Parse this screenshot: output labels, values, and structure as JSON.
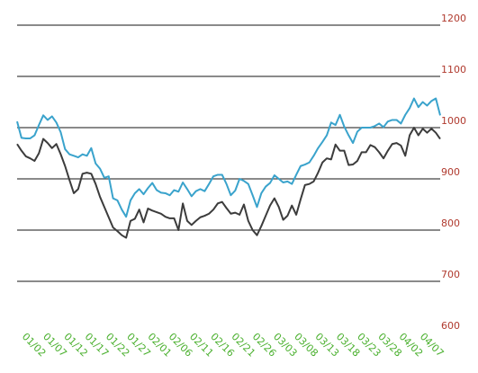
{
  "chart_data": {
    "type": "line",
    "ylim": [
      600,
      1200
    ],
    "yticks": [
      600,
      700,
      800,
      900,
      1000,
      1100,
      1200
    ],
    "grid": true,
    "legend": "none",
    "colors": {
      "ytick": "#b03a2e",
      "xtick": "#4ab02e",
      "grid": "#444444"
    },
    "xticks": [
      "01/02",
      "01/07",
      "01/12",
      "01/17",
      "01/22",
      "01/27",
      "02/01",
      "02/06",
      "02/11",
      "02/16",
      "02/21",
      "02/26",
      "03/03",
      "03/08",
      "03/13",
      "03/18",
      "03/23",
      "03/28",
      "04/02",
      "04/07"
    ],
    "series": [
      {
        "color": "#3aa3cc",
        "values": [
          1012,
          980,
          979,
          979,
          985,
          1005,
          1024,
          1015,
          1022,
          1010,
          991,
          958,
          948,
          945,
          942,
          948,
          945,
          960,
          930,
          920,
          902,
          905,
          862,
          858,
          840,
          826,
          858,
          872,
          880,
          870,
          882,
          892,
          878,
          873,
          872,
          868,
          878,
          875,
          893,
          880,
          866,
          876,
          880,
          876,
          890,
          905,
          908,
          908,
          890,
          868,
          877,
          900,
          896,
          890,
          868,
          845,
          872,
          885,
          892,
          907,
          900,
          893,
          895,
          890,
          908,
          925,
          928,
          932,
          945,
          960,
          972,
          985,
          1010,
          1005,
          1025,
          1002,
          985,
          970,
          992,
          1000,
          1000,
          1000,
          1003,
          1008,
          1001,
          1012,
          1015,
          1015,
          1008,
          1025,
          1038,
          1057,
          1040,
          1050,
          1043,
          1052,
          1057,
          1024
        ]
      },
      {
        "color": "#3c3c3c",
        "values": [
          968,
          955,
          944,
          940,
          935,
          950,
          978,
          970,
          960,
          968,
          948,
          925,
          898,
          872,
          880,
          910,
          912,
          910,
          890,
          865,
          845,
          825,
          805,
          798,
          790,
          785,
          818,
          822,
          840,
          815,
          842,
          838,
          835,
          832,
          826,
          823,
          823,
          800,
          852,
          818,
          810,
          818,
          825,
          828,
          832,
          840,
          852,
          855,
          843,
          832,
          834,
          830,
          850,
          818,
          800,
          790,
          808,
          828,
          848,
          862,
          845,
          820,
          828,
          848,
          830,
          860,
          888,
          890,
          895,
          912,
          932,
          940,
          938,
          967,
          955,
          955,
          927,
          928,
          935,
          952,
          952,
          966,
          962,
          952,
          940,
          955,
          968,
          970,
          965,
          945,
          985,
          1000,
          985,
          998,
          990,
          998,
          990,
          978
        ]
      }
    ]
  }
}
